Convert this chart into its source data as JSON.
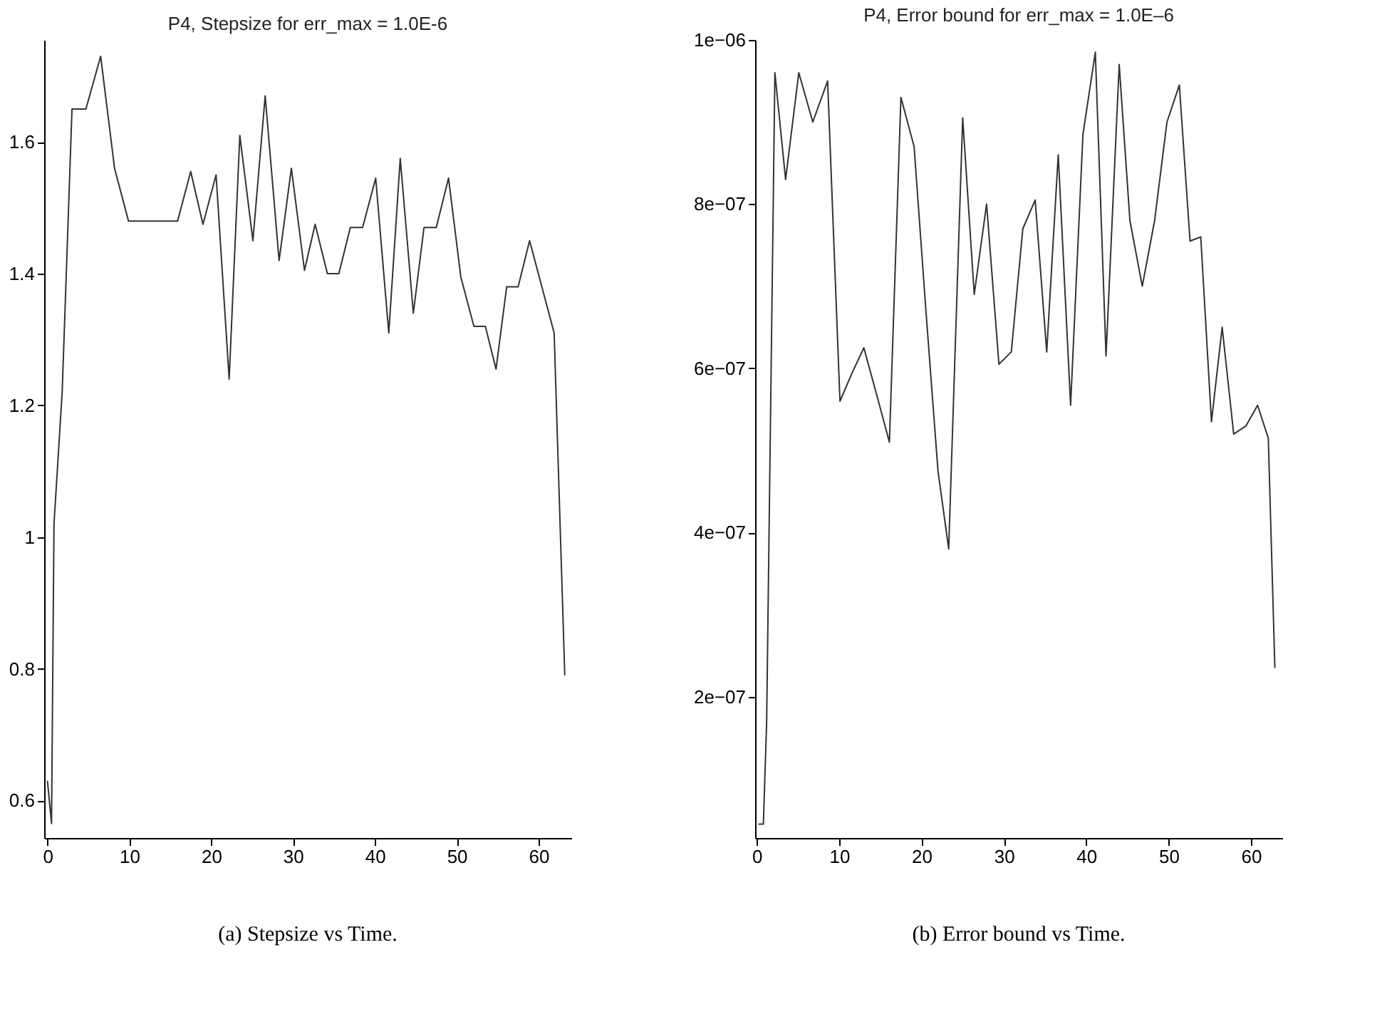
{
  "chart_data": [
    {
      "type": "line",
      "title": "P4, Stepsize for err_max = 1.0E-6",
      "annotations": [
        "(a) Stepsize vs Time."
      ],
      "x": [
        0,
        0.5,
        0.8,
        1.8,
        3.0,
        4.7,
        6.5,
        8.2,
        9.9,
        11.4,
        12.9,
        14.4,
        15.9,
        17.5,
        19.0,
        20.6,
        22.2,
        23.5,
        25.1,
        26.6,
        28.3,
        29.8,
        31.4,
        32.7,
        34.2,
        35.6,
        37.0,
        38.5,
        40.1,
        41.7,
        43.1,
        44.7,
        46.0,
        47.5,
        49.0,
        50.5,
        52.1,
        53.5,
        54.8,
        56.1,
        57.5,
        58.9,
        61.9,
        63.2
      ],
      "series": [
        {
          "color": "#333333",
          "values": [
            0.63,
            0.565,
            1.02,
            1.22,
            1.65,
            1.65,
            1.73,
            1.56,
            1.48,
            1.48,
            1.48,
            1.48,
            1.48,
            1.555,
            1.475,
            1.55,
            1.24,
            1.61,
            1.45,
            1.67,
            1.42,
            1.56,
            1.405,
            1.475,
            1.4,
            1.4,
            1.47,
            1.47,
            1.545,
            1.31,
            1.575,
            1.34,
            1.47,
            1.47,
            1.545,
            1.395,
            1.32,
            1.32,
            1.255,
            1.38,
            1.38,
            1.45,
            1.31,
            0.79
          ]
        }
      ],
      "xlim": [
        -0.4,
        64
      ],
      "xticks": [
        0,
        10,
        20,
        30,
        40,
        50,
        60
      ],
      "ylim": [
        0.543,
        1.755
      ],
      "yticks": [
        0.6,
        0.8,
        1,
        1.2,
        1.4,
        1.6
      ],
      "grid": false,
      "marker": "none",
      "line_style": "solid"
    },
    {
      "type": "line",
      "title": "P4, Error bound for err_max = 1.0E–6",
      "annotations": [
        "(b) Error bound vs Time."
      ],
      "x": [
        0.2,
        0.8,
        1.2,
        2.2,
        3.5,
        5.1,
        6.8,
        8.6,
        10.1,
        11.6,
        13.0,
        14.5,
        16.1,
        17.5,
        19.1,
        20.5,
        22.0,
        23.3,
        25.0,
        26.4,
        27.9,
        29.4,
        30.9,
        32.3,
        33.8,
        35.2,
        36.6,
        38.1,
        39.6,
        41.1,
        42.4,
        44.0,
        45.3,
        46.8,
        48.3,
        49.8,
        51.3,
        52.6,
        53.9,
        55.2,
        56.5,
        57.9,
        59.4,
        60.8,
        62.1,
        62.9
      ],
      "series": [
        {
          "color": "#333333",
          "values": [
            4.5e-08,
            4.5e-08,
            1.7e-07,
            9.6e-07,
            8.3e-07,
            9.6e-07,
            9e-07,
            9.5e-07,
            5.6e-07,
            5.95e-07,
            6.25e-07,
            5.7e-07,
            5.1e-07,
            9.3e-07,
            8.7e-07,
            6.75e-07,
            4.75e-07,
            3.8e-07,
            9.05e-07,
            6.9e-07,
            8e-07,
            6.05e-07,
            6.2e-07,
            7.7e-07,
            8.05e-07,
            6.2e-07,
            8.6e-07,
            5.55e-07,
            8.85e-07,
            9.85e-07,
            6.15e-07,
            9.7e-07,
            7.8e-07,
            7e-07,
            7.8e-07,
            9e-07,
            9.45e-07,
            7.55e-07,
            7.6e-07,
            5.35e-07,
            6.5e-07,
            5.2e-07,
            5.3e-07,
            5.55e-07,
            5.15e-07,
            2.35e-07
          ]
        }
      ],
      "xlim": [
        -0.2,
        63.8
      ],
      "xticks": [
        0,
        10,
        20,
        30,
        40,
        50,
        60
      ],
      "ylim": [
        2.8e-08,
        1e-06
      ],
      "yticks": [
        {
          "value": 2e-07,
          "label": "2e−07"
        },
        {
          "value": 4e-07,
          "label": "4e−07"
        },
        {
          "value": 6e-07,
          "label": "6e−07"
        },
        {
          "value": 8e-07,
          "label": "8e−07"
        },
        {
          "value": 1e-06,
          "label": "1e−06"
        }
      ],
      "grid": false,
      "marker": "none",
      "line_style": "solid"
    }
  ]
}
